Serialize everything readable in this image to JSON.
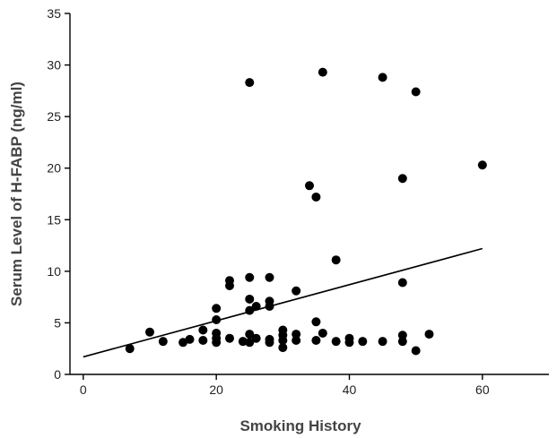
{
  "chart_data": {
    "type": "scatter",
    "title": "",
    "xlabel": "Smoking History",
    "ylabel": "Serum Level of H-FABP (ng/ml)",
    "xlim": [
      -2,
      70
    ],
    "ylim": [
      0,
      35
    ],
    "xticks": [
      0,
      20,
      40,
      60
    ],
    "yticks": [
      0,
      5,
      10,
      15,
      20,
      25,
      30,
      35
    ],
    "grid": false,
    "trendline": {
      "x": [
        0,
        60
      ],
      "y": [
        1.7,
        12.2
      ]
    },
    "points": [
      {
        "x": 7,
        "y": 2.5
      },
      {
        "x": 10,
        "y": 4.1
      },
      {
        "x": 12,
        "y": 3.2
      },
      {
        "x": 15,
        "y": 3.1
      },
      {
        "x": 16,
        "y": 3.4
      },
      {
        "x": 18,
        "y": 4.3
      },
      {
        "x": 18,
        "y": 3.3
      },
      {
        "x": 20,
        "y": 6.4
      },
      {
        "x": 20,
        "y": 5.3
      },
      {
        "x": 20,
        "y": 4.0
      },
      {
        "x": 20,
        "y": 3.5
      },
      {
        "x": 20,
        "y": 3.1
      },
      {
        "x": 22,
        "y": 9.1
      },
      {
        "x": 22,
        "y": 8.6
      },
      {
        "x": 22,
        "y": 3.5
      },
      {
        "x": 24,
        "y": 3.2
      },
      {
        "x": 25,
        "y": 28.3
      },
      {
        "x": 25,
        "y": 9.4
      },
      {
        "x": 25,
        "y": 7.3
      },
      {
        "x": 25,
        "y": 6.2
      },
      {
        "x": 25,
        "y": 3.9
      },
      {
        "x": 25,
        "y": 3.1
      },
      {
        "x": 26,
        "y": 6.6
      },
      {
        "x": 26,
        "y": 3.5
      },
      {
        "x": 28,
        "y": 9.4
      },
      {
        "x": 28,
        "y": 7.1
      },
      {
        "x": 28,
        "y": 6.6
      },
      {
        "x": 28,
        "y": 3.4
      },
      {
        "x": 28,
        "y": 3.1
      },
      {
        "x": 30,
        "y": 4.3
      },
      {
        "x": 30,
        "y": 3.8
      },
      {
        "x": 30,
        "y": 3.3
      },
      {
        "x": 30,
        "y": 2.6
      },
      {
        "x": 32,
        "y": 8.1
      },
      {
        "x": 32,
        "y": 3.9
      },
      {
        "x": 32,
        "y": 3.3
      },
      {
        "x": 34,
        "y": 18.3
      },
      {
        "x": 35,
        "y": 17.2
      },
      {
        "x": 35,
        "y": 5.1
      },
      {
        "x": 35,
        "y": 3.3
      },
      {
        "x": 36,
        "y": 29.3
      },
      {
        "x": 36,
        "y": 4.0
      },
      {
        "x": 38,
        "y": 11.1
      },
      {
        "x": 38,
        "y": 3.2
      },
      {
        "x": 40,
        "y": 3.5
      },
      {
        "x": 40,
        "y": 3.1
      },
      {
        "x": 42,
        "y": 3.2
      },
      {
        "x": 45,
        "y": 28.8
      },
      {
        "x": 45,
        "y": 3.2
      },
      {
        "x": 48,
        "y": 19.0
      },
      {
        "x": 48,
        "y": 8.9
      },
      {
        "x": 48,
        "y": 3.8
      },
      {
        "x": 48,
        "y": 3.2
      },
      {
        "x": 50,
        "y": 27.4
      },
      {
        "x": 50,
        "y": 2.3
      },
      {
        "x": 52,
        "y": 3.9
      },
      {
        "x": 60,
        "y": 20.3
      }
    ]
  }
}
